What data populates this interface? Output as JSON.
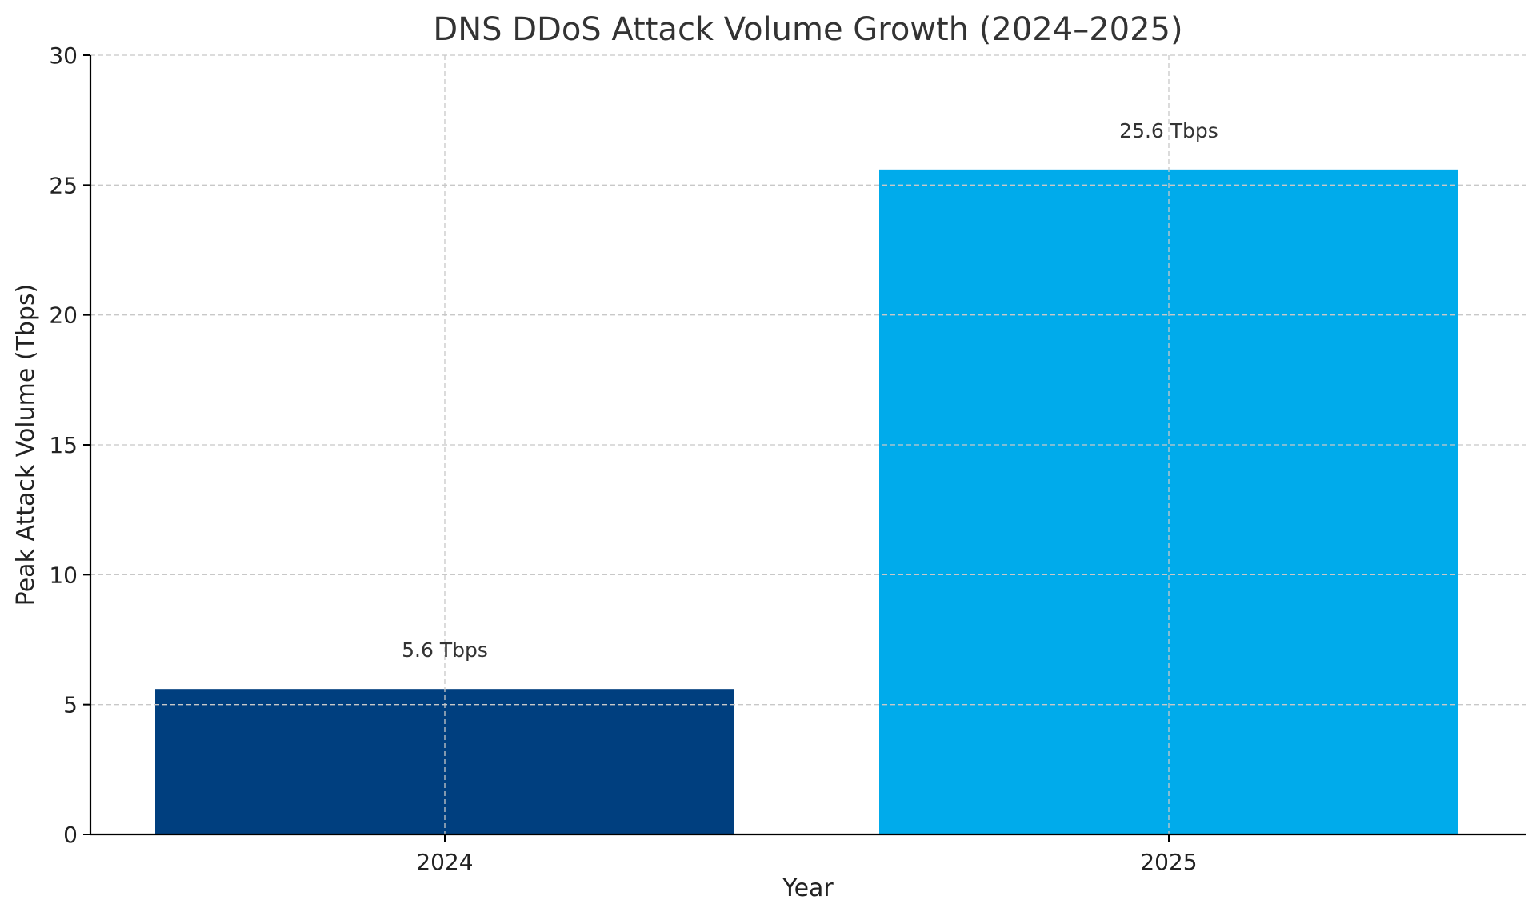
{
  "chart_data": {
    "type": "bar",
    "title": "DNS DDoS Attack Volume Growth (2024–2025)",
    "xlabel": "Year",
    "ylabel": "Peak Attack Volume (Tbps)",
    "categories": [
      "2024",
      "2025"
    ],
    "values": [
      5.6,
      25.6
    ],
    "data_labels": [
      "5.6 Tbps",
      "25.6 Tbps"
    ],
    "colors": [
      "#003f7f",
      "#00abeb"
    ],
    "ylim": [
      0,
      30
    ],
    "yticks": [
      0,
      5,
      10,
      15,
      20,
      25,
      30
    ],
    "grid": true,
    "legend": "none"
  }
}
